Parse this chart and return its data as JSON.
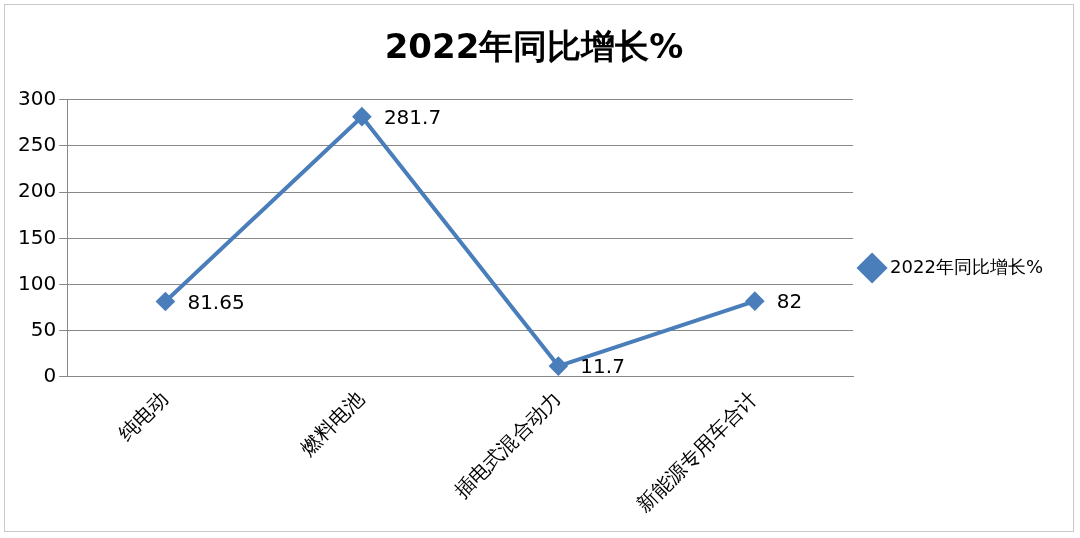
{
  "chart_data": {
    "type": "line",
    "title": "2022年同比增长%",
    "categories": [
      "纯电动",
      "燃料电池",
      "插电式混合动力",
      "新能源专用车合计"
    ],
    "series": [
      {
        "name": "2022年同比增长%",
        "color": "#4a7ebb",
        "values": [
          81.65,
          281.7,
          11.7,
          82
        ]
      }
    ],
    "ylim": [
      0,
      300
    ],
    "yticks": [
      0,
      50,
      100,
      150,
      200,
      250,
      300
    ],
    "grid": "y",
    "legend": "right",
    "marker": "diamond",
    "line_style": "solid",
    "data_labels": true
  }
}
